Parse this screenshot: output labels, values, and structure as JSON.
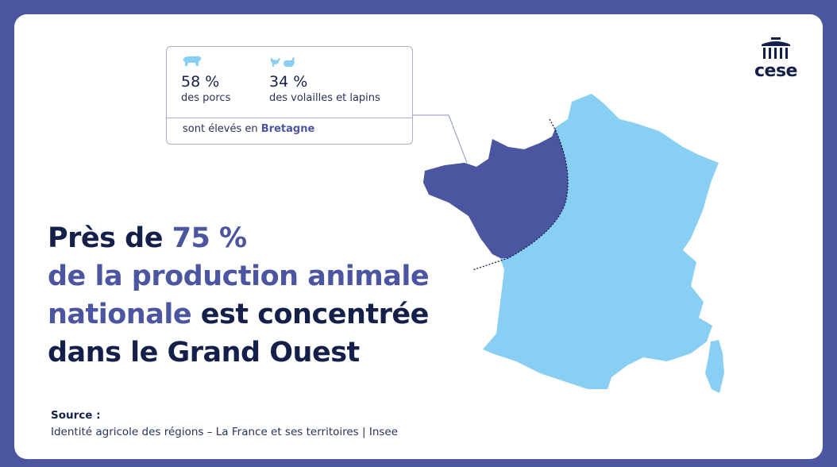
{
  "logo": {
    "text": "cese"
  },
  "stats": [
    {
      "icon": "pig-icon",
      "value": "58 %",
      "label": "des porcs"
    },
    {
      "icon": "poultry-rabbit-icon",
      "value": "34 %",
      "label": "des volailles et lapins"
    }
  ],
  "stats_footer": {
    "prefix": "sont élevés en",
    "region": "Bretagne"
  },
  "headline": {
    "line1_a": "Près de ",
    "line1_b": "75 %",
    "line2": "de la production animale",
    "line3_a": "nationale",
    "line3_b": " est concentrée",
    "line4": "dans le Grand Ouest"
  },
  "source": {
    "title": "Source :",
    "text": "Identité agricole des régions – La France et ses territoires | Insee"
  },
  "colors": {
    "frame": "#4b55a0",
    "grand_ouest": "#4b55a0",
    "rest_of_france": "#88cff3",
    "text": "#15204a"
  }
}
